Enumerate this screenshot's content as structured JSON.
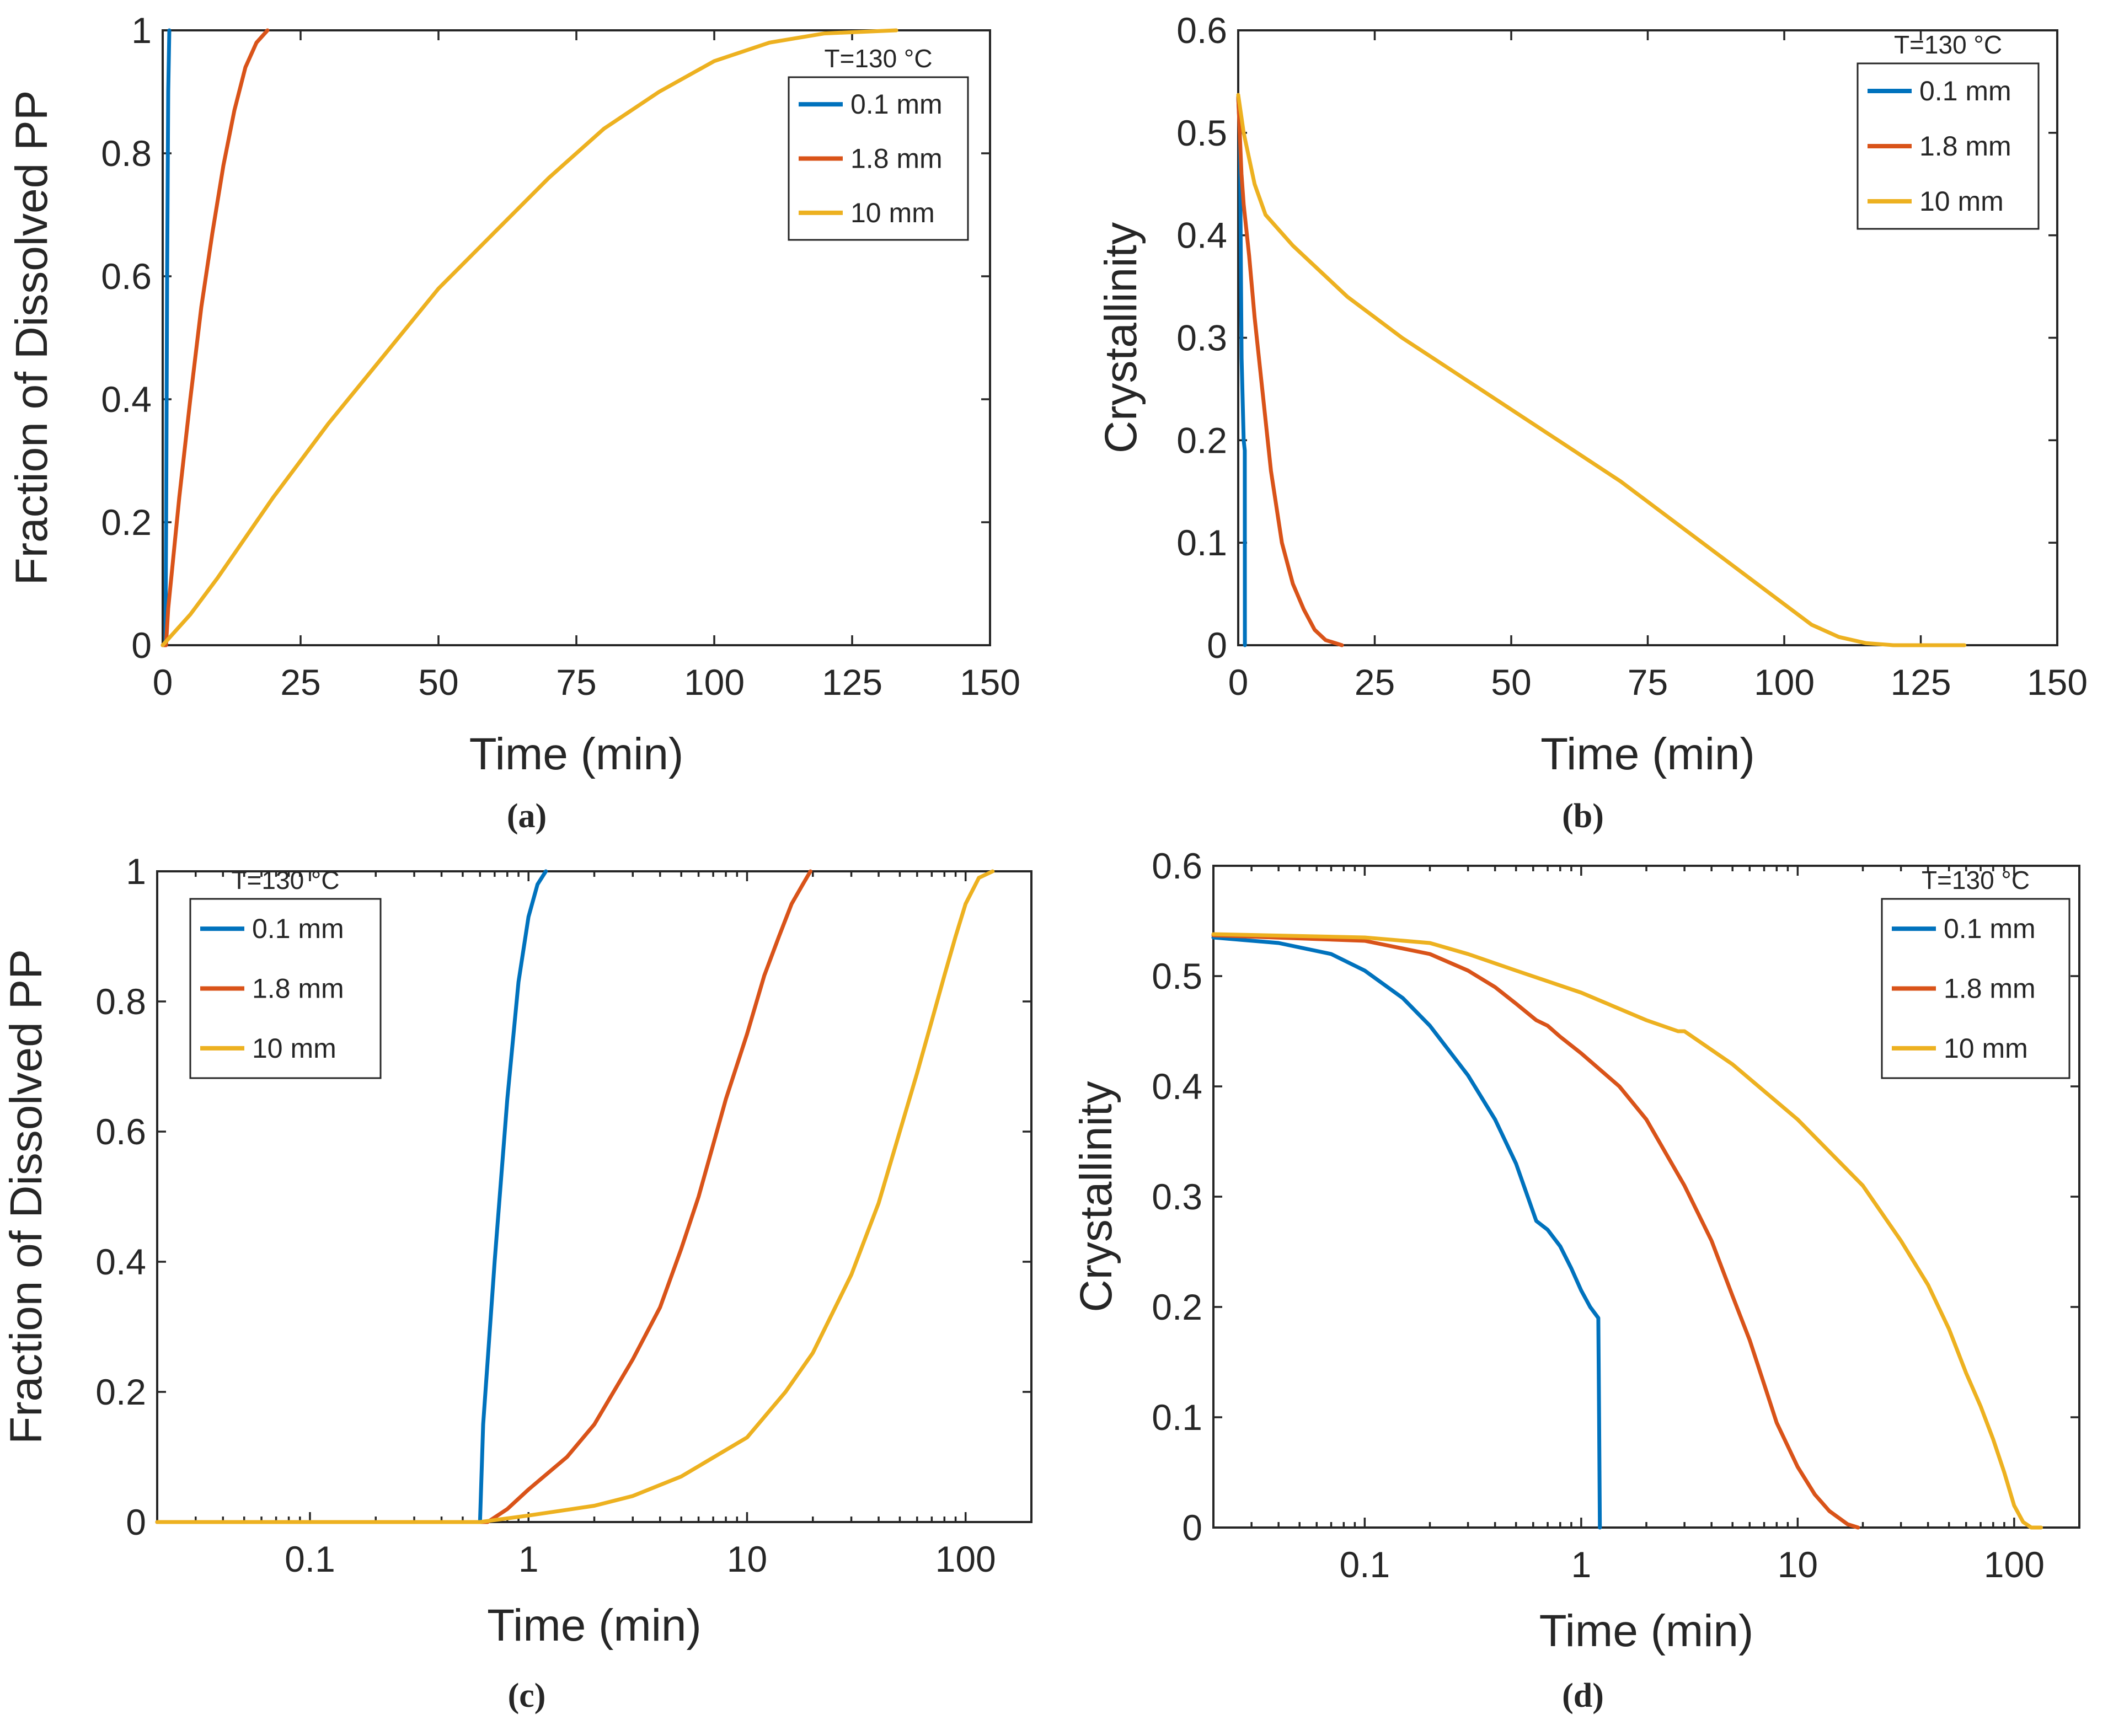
{
  "colors": {
    "blue": "#0072BD",
    "orange": "#D95319",
    "yellow": "#EDB120",
    "axis": "#262626"
  },
  "chart_data": [
    {
      "id": "a",
      "type": "line",
      "caption": "(a)",
      "xscale": "linear",
      "xlabel": "Time (min)",
      "ylabel": "Fraction of Dissolved PP",
      "xlim": [
        0,
        150
      ],
      "ylim": [
        0,
        1
      ],
      "xticks": [
        0,
        25,
        50,
        75,
        100,
        125,
        150
      ],
      "xtick_labels": [
        "0",
        "25",
        "50",
        "75",
        "100",
        "125",
        "150"
      ],
      "yticks": [
        0,
        0.2,
        0.4,
        0.6,
        0.8,
        1
      ],
      "ytick_labels": [
        "0",
        "0.2",
        "0.4",
        "0.6",
        "0.8",
        "1"
      ],
      "legend": {
        "title": "T=130 °C",
        "location": "top-right"
      },
      "series": [
        {
          "name": "0.1 mm",
          "color_key": "blue",
          "points": [
            [
              0,
              0
            ],
            [
              0.5,
              0
            ],
            [
              0.62,
              0.2
            ],
            [
              0.8,
              0.6
            ],
            [
              1.0,
              0.9
            ],
            [
              1.2,
              1.0
            ]
          ]
        },
        {
          "name": "1.8 mm",
          "color_key": "orange",
          "points": [
            [
              0,
              0
            ],
            [
              0.6,
              0
            ],
            [
              1,
              0.06
            ],
            [
              2,
              0.15
            ],
            [
              3,
              0.24
            ],
            [
              5,
              0.4
            ],
            [
              7,
              0.55
            ],
            [
              9,
              0.67
            ],
            [
              11,
              0.78
            ],
            [
              13,
              0.87
            ],
            [
              15,
              0.94
            ],
            [
              17,
              0.98
            ],
            [
              19,
              1.0
            ]
          ]
        },
        {
          "name": "10 mm",
          "color_key": "yellow",
          "points": [
            [
              0,
              0
            ],
            [
              5,
              0.05
            ],
            [
              10,
              0.11
            ],
            [
              20,
              0.24
            ],
            [
              30,
              0.36
            ],
            [
              40,
              0.47
            ],
            [
              50,
              0.58
            ],
            [
              60,
              0.67
            ],
            [
              70,
              0.76
            ],
            [
              80,
              0.84
            ],
            [
              90,
              0.9
            ],
            [
              100,
              0.95
            ],
            [
              110,
              0.98
            ],
            [
              120,
              0.995
            ],
            [
              133,
              1.0
            ]
          ]
        }
      ]
    },
    {
      "id": "b",
      "type": "line",
      "caption": "(b)",
      "xscale": "linear",
      "xlabel": "Time (min)",
      "ylabel": "Crystallinity",
      "xlim": [
        0,
        150
      ],
      "ylim": [
        0,
        0.6
      ],
      "xticks": [
        0,
        25,
        50,
        75,
        100,
        125,
        150
      ],
      "xtick_labels": [
        "0",
        "25",
        "50",
        "75",
        "100",
        "125",
        "150"
      ],
      "yticks": [
        0,
        0.1,
        0.2,
        0.3,
        0.4,
        0.5,
        0.6
      ],
      "ytick_labels": [
        "0",
        "0.1",
        "0.2",
        "0.3",
        "0.4",
        "0.5",
        "0.6"
      ],
      "legend": {
        "title": "T=130 °C",
        "location": "top-right"
      },
      "series": [
        {
          "name": "0.1 mm",
          "color_key": "blue",
          "points": [
            [
              0,
              0.535
            ],
            [
              0.3,
              0.5
            ],
            [
              0.62,
              0.28
            ],
            [
              1.0,
              0.2
            ],
            [
              1.2,
              0.19
            ],
            [
              1.22,
              0.0
            ]
          ]
        },
        {
          "name": "1.8 mm",
          "color_key": "orange",
          "points": [
            [
              0,
              0.535
            ],
            [
              0.6,
              0.46
            ],
            [
              1,
              0.43
            ],
            [
              2,
              0.38
            ],
            [
              3,
              0.32
            ],
            [
              4,
              0.27
            ],
            [
              5,
              0.22
            ],
            [
              6,
              0.17
            ],
            [
              8,
              0.1
            ],
            [
              10,
              0.06
            ],
            [
              12,
              0.035
            ],
            [
              14,
              0.015
            ],
            [
              16,
              0.005
            ],
            [
              19,
              0
            ]
          ]
        },
        {
          "name": "10 mm",
          "color_key": "yellow",
          "points": [
            [
              0,
              0.537
            ],
            [
              1,
              0.5
            ],
            [
              3,
              0.45
            ],
            [
              5,
              0.42
            ],
            [
              10,
              0.39
            ],
            [
              20,
              0.34
            ],
            [
              30,
              0.3
            ],
            [
              40,
              0.265
            ],
            [
              50,
              0.23
            ],
            [
              60,
              0.195
            ],
            [
              70,
              0.16
            ],
            [
              80,
              0.12
            ],
            [
              90,
              0.08
            ],
            [
              100,
              0.04
            ],
            [
              105,
              0.02
            ],
            [
              110,
              0.008
            ],
            [
              115,
              0.002
            ],
            [
              120,
              0
            ],
            [
              133,
              0
            ]
          ]
        }
      ]
    },
    {
      "id": "c",
      "type": "line",
      "caption": "(c)",
      "xscale": "log",
      "xlabel": "Time (min)",
      "ylabel": "Fraction of Dissolved PP",
      "xlim": [
        0.02,
        200
      ],
      "ylim": [
        0,
        1
      ],
      "xticks": [
        0.1,
        1,
        10,
        100
      ],
      "xtick_labels": [
        "0.1",
        "1",
        "10",
        "100"
      ],
      "yticks": [
        0,
        0.2,
        0.4,
        0.6,
        0.8,
        1
      ],
      "ytick_labels": [
        "0",
        "0.2",
        "0.4",
        "0.6",
        "0.8",
        "1"
      ],
      "legend": {
        "title": "T=130 °C",
        "location": "top-left"
      },
      "series": [
        {
          "name": "0.1 mm",
          "color_key": "blue",
          "points": [
            [
              0.02,
              0
            ],
            [
              0.6,
              0
            ],
            [
              0.62,
              0.15
            ],
            [
              0.7,
              0.4
            ],
            [
              0.8,
              0.65
            ],
            [
              0.9,
              0.83
            ],
            [
              1.0,
              0.93
            ],
            [
              1.1,
              0.98
            ],
            [
              1.2,
              1.0
            ]
          ]
        },
        {
          "name": "1.8 mm",
          "color_key": "orange",
          "points": [
            [
              0.02,
              0
            ],
            [
              0.65,
              0
            ],
            [
              0.8,
              0.02
            ],
            [
              1,
              0.05
            ],
            [
              1.5,
              0.1
            ],
            [
              2,
              0.15
            ],
            [
              3,
              0.25
            ],
            [
              4,
              0.33
            ],
            [
              5,
              0.42
            ],
            [
              6,
              0.5
            ],
            [
              7,
              0.58
            ],
            [
              8,
              0.65
            ],
            [
              10,
              0.75
            ],
            [
              12,
              0.84
            ],
            [
              14,
              0.9
            ],
            [
              16,
              0.95
            ],
            [
              18,
              0.98
            ],
            [
              19.5,
              1.0
            ]
          ]
        },
        {
          "name": "10 mm",
          "color_key": "yellow",
          "points": [
            [
              0.02,
              0
            ],
            [
              0.6,
              0
            ],
            [
              1,
              0.01
            ],
            [
              2,
              0.025
            ],
            [
              3,
              0.04
            ],
            [
              5,
              0.07
            ],
            [
              10,
              0.13
            ],
            [
              15,
              0.2
            ],
            [
              20,
              0.26
            ],
            [
              30,
              0.38
            ],
            [
              40,
              0.49
            ],
            [
              50,
              0.6
            ],
            [
              60,
              0.69
            ],
            [
              70,
              0.77
            ],
            [
              80,
              0.84
            ],
            [
              90,
              0.9
            ],
            [
              100,
              0.95
            ],
            [
              115,
              0.99
            ],
            [
              133,
              1.0
            ]
          ]
        }
      ]
    },
    {
      "id": "d",
      "type": "line",
      "caption": "(d)",
      "xscale": "log",
      "xlabel": "Time (min)",
      "ylabel": "Crystallinity",
      "xlim": [
        0.02,
        200
      ],
      "ylim": [
        0,
        0.6
      ],
      "xticks": [
        0.1,
        1,
        10,
        100
      ],
      "xtick_labels": [
        "0.1",
        "1",
        "10",
        "100"
      ],
      "yticks": [
        0,
        0.1,
        0.2,
        0.3,
        0.4,
        0.5,
        0.6
      ],
      "ytick_labels": [
        "0",
        "0.1",
        "0.2",
        "0.3",
        "0.4",
        "0.5",
        "0.6"
      ],
      "legend": {
        "title": "T=130 °C",
        "location": "top-right"
      },
      "series": [
        {
          "name": "0.1 mm",
          "color_key": "blue",
          "points": [
            [
              0.02,
              0.535
            ],
            [
              0.04,
              0.53
            ],
            [
              0.07,
              0.52
            ],
            [
              0.1,
              0.505
            ],
            [
              0.15,
              0.48
            ],
            [
              0.2,
              0.455
            ],
            [
              0.3,
              0.41
            ],
            [
              0.4,
              0.37
            ],
            [
              0.5,
              0.33
            ],
            [
              0.62,
              0.278
            ],
            [
              0.7,
              0.27
            ],
            [
              0.8,
              0.255
            ],
            [
              0.9,
              0.235
            ],
            [
              1.0,
              0.215
            ],
            [
              1.1,
              0.2
            ],
            [
              1.2,
              0.19
            ],
            [
              1.21,
              0.1
            ],
            [
              1.22,
              0.0
            ]
          ]
        },
        {
          "name": "1.8 mm",
          "color_key": "orange",
          "points": [
            [
              0.02,
              0.537
            ],
            [
              0.1,
              0.532
            ],
            [
              0.2,
              0.52
            ],
            [
              0.3,
              0.505
            ],
            [
              0.4,
              0.49
            ],
            [
              0.5,
              0.475
            ],
            [
              0.62,
              0.46
            ],
            [
              0.7,
              0.455
            ],
            [
              0.8,
              0.445
            ],
            [
              1.0,
              0.43
            ],
            [
              1.5,
              0.4
            ],
            [
              2,
              0.37
            ],
            [
              3,
              0.31
            ],
            [
              4,
              0.26
            ],
            [
              5,
              0.21
            ],
            [
              6,
              0.17
            ],
            [
              7,
              0.13
            ],
            [
              8,
              0.095
            ],
            [
              10,
              0.055
            ],
            [
              12,
              0.03
            ],
            [
              14,
              0.015
            ],
            [
              17,
              0.003
            ],
            [
              19,
              0
            ]
          ]
        },
        {
          "name": "10 mm",
          "color_key": "yellow",
          "points": [
            [
              0.02,
              0.538
            ],
            [
              0.1,
              0.535
            ],
            [
              0.2,
              0.53
            ],
            [
              0.3,
              0.52
            ],
            [
              0.5,
              0.505
            ],
            [
              1,
              0.485
            ],
            [
              2,
              0.46
            ],
            [
              2.8,
              0.45
            ],
            [
              3,
              0.45
            ],
            [
              5,
              0.42
            ],
            [
              10,
              0.37
            ],
            [
              20,
              0.31
            ],
            [
              30,
              0.26
            ],
            [
              40,
              0.22
            ],
            [
              50,
              0.18
            ],
            [
              60,
              0.14
            ],
            [
              70,
              0.11
            ],
            [
              80,
              0.08
            ],
            [
              90,
              0.05
            ],
            [
              100,
              0.02
            ],
            [
              110,
              0.005
            ],
            [
              120,
              0
            ],
            [
              133,
              0
            ]
          ]
        }
      ]
    }
  ]
}
